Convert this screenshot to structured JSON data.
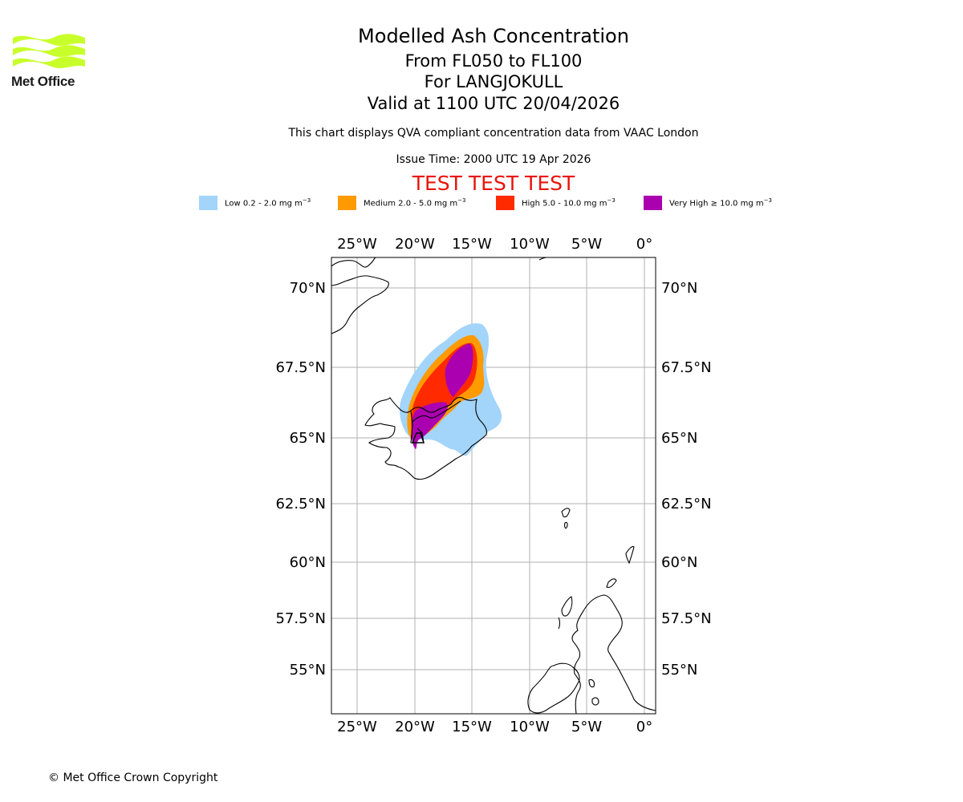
{
  "header": {
    "logo_text": "Met Office",
    "title": "Modelled Ash Concentration",
    "flight_levels": "From FL050 to FL100",
    "volcano": "For LANGJOKULL",
    "valid_time": "Valid at 1100 UTC 20/04/2026",
    "subtitle": "This chart displays QVA compliant concentration data from VAAC London",
    "issue_time": "Issue Time: 2000 UTC 19 Apr 2026",
    "test_banner": "TEST TEST TEST"
  },
  "legend": [
    {
      "label": "Low 0.2 - 2.0 mg m",
      "color": "#a3d4fa"
    },
    {
      "label": "Medium 2.0 - 5.0 mg m",
      "color": "#ff9a00"
    },
    {
      "label": "High 5.0 - 10.0 mg m",
      "color": "#ff2a00"
    },
    {
      "label": "Very High ≥ 10.0 mg m",
      "color": "#ab00b0"
    }
  ],
  "legend_unit_exponent": "−3",
  "map": {
    "lon_labels": [
      "25°W",
      "20°W",
      "15°W",
      "10°W",
      "5°W",
      "0°"
    ],
    "lat_labels": [
      "70°N",
      "67.5°N",
      "65°N",
      "62.5°N",
      "60°N",
      "57.5°N",
      "55°N"
    ]
  },
  "footer": {
    "copyright": "© Met Office Crown Copyright"
  }
}
